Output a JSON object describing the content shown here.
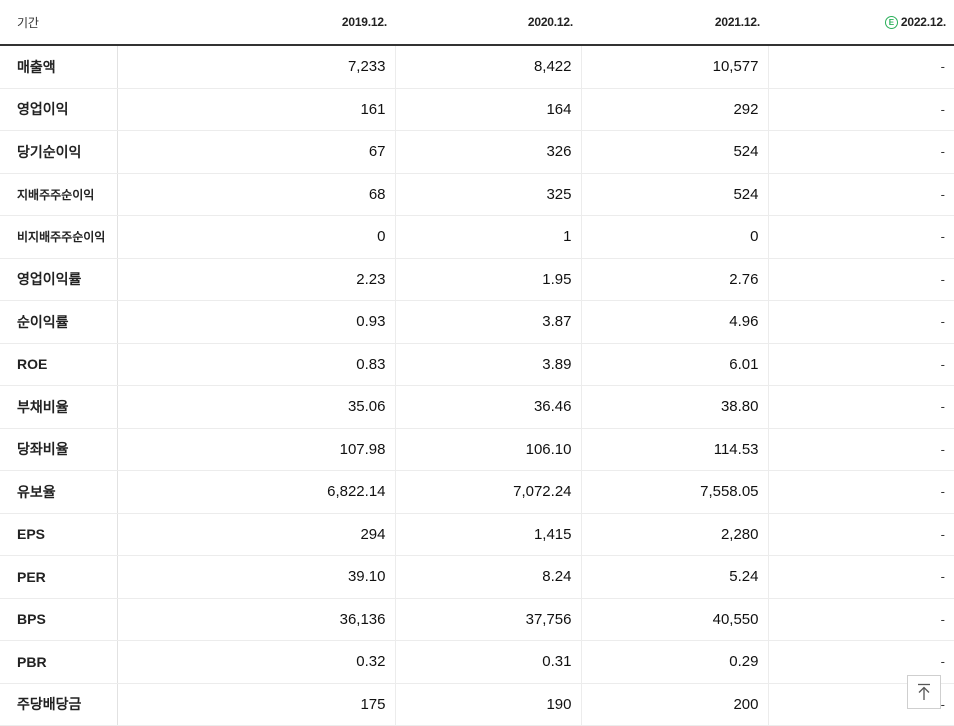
{
  "header": {
    "label": "기간",
    "periods": [
      "2019.12.",
      "2020.12.",
      "2021.12.",
      "2022.12."
    ],
    "estimate_badge": "E"
  },
  "rows": [
    {
      "label": "매출액",
      "values": [
        "7,233",
        "8,422",
        "10,577",
        "-"
      ]
    },
    {
      "label": "영업이익",
      "values": [
        "161",
        "164",
        "292",
        "-"
      ]
    },
    {
      "label": "당기순이익",
      "values": [
        "67",
        "326",
        "524",
        "-"
      ]
    },
    {
      "label": "지배주주순이익",
      "values": [
        "68",
        "325",
        "524",
        "-"
      ]
    },
    {
      "label": "비지배주주순이익",
      "values": [
        "0",
        "1",
        "0",
        "-"
      ]
    },
    {
      "label": "영업이익률",
      "values": [
        "2.23",
        "1.95",
        "2.76",
        "-"
      ]
    },
    {
      "label": "순이익률",
      "values": [
        "0.93",
        "3.87",
        "4.96",
        "-"
      ]
    },
    {
      "label": "ROE",
      "values": [
        "0.83",
        "3.89",
        "6.01",
        "-"
      ]
    },
    {
      "label": "부채비율",
      "values": [
        "35.06",
        "36.46",
        "38.80",
        "-"
      ]
    },
    {
      "label": "당좌비율",
      "values": [
        "107.98",
        "106.10",
        "114.53",
        "-"
      ]
    },
    {
      "label": "유보율",
      "values": [
        "6,822.14",
        "7,072.24",
        "7,558.05",
        "-"
      ]
    },
    {
      "label": "EPS",
      "values": [
        "294",
        "1,415",
        "2,280",
        "-"
      ]
    },
    {
      "label": "PER",
      "values": [
        "39.10",
        "8.24",
        "5.24",
        "-"
      ]
    },
    {
      "label": "BPS",
      "values": [
        "36,136",
        "37,756",
        "40,550",
        "-"
      ]
    },
    {
      "label": "PBR",
      "values": [
        "0.32",
        "0.31",
        "0.29",
        "-"
      ]
    },
    {
      "label": "주당배당금",
      "values": [
        "175",
        "190",
        "200",
        "-"
      ]
    }
  ],
  "colors": {
    "estimate_badge": "#2bb05a",
    "header_rule": "#333333",
    "grid": "#ececec"
  },
  "icons": {
    "scroll_top": "arrow-up-to-line-icon"
  }
}
